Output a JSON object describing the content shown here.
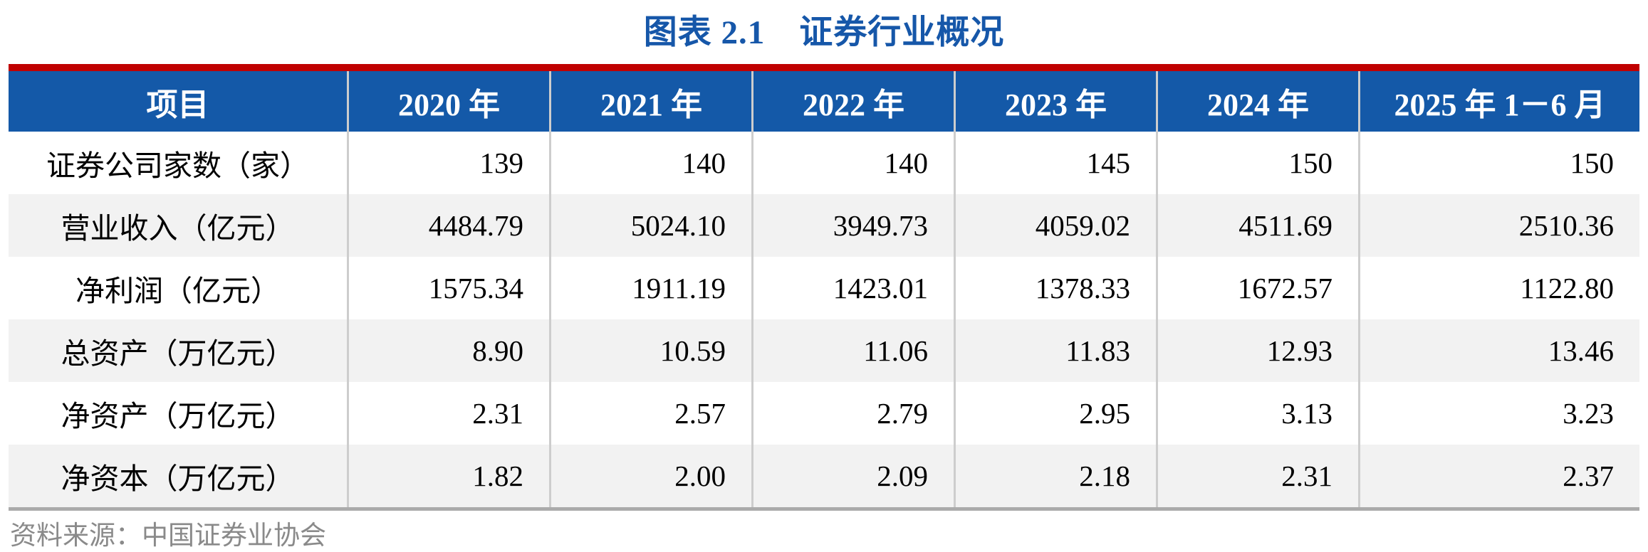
{
  "title": "图表 2.1　证券行业概况",
  "source_note": "资料来源：中国证券业协会",
  "colors": {
    "title_blue": "#1657a9",
    "header_background": "#1459a8",
    "header_text": "#ffffff",
    "accent_red_bar": "#c00000",
    "alt_row_gray": "#f2f2f2",
    "column_separator": "#cdcdcd",
    "table_bottom_border": "#ababab",
    "source_text_gray": "#8a8a8a"
  },
  "table": {
    "header": [
      "项目",
      "2020 年",
      "2021 年",
      "2022 年",
      "2023 年",
      "2024 年",
      "2025 年 1－6 月"
    ],
    "rows": [
      {
        "label": "证券公司家数（家）",
        "values": [
          "139",
          "140",
          "140",
          "145",
          "150",
          "150"
        ]
      },
      {
        "label": "营业收入（亿元）",
        "values": [
          "4484.79",
          "5024.10",
          "3949.73",
          "4059.02",
          "4511.69",
          "2510.36"
        ]
      },
      {
        "label": "净利润（亿元）",
        "values": [
          "1575.34",
          "1911.19",
          "1423.01",
          "1378.33",
          "1672.57",
          "1122.80"
        ]
      },
      {
        "label": "总资产（万亿元）",
        "values": [
          "8.90",
          "10.59",
          "11.06",
          "11.83",
          "12.93",
          "13.46"
        ]
      },
      {
        "label": "净资产（万亿元）",
        "values": [
          "2.31",
          "2.57",
          "2.79",
          "2.95",
          "3.13",
          "3.23"
        ]
      },
      {
        "label": "净资本（万亿元）",
        "values": [
          "1.82",
          "2.00",
          "2.09",
          "2.18",
          "2.31",
          "2.37"
        ]
      }
    ]
  },
  "chart_data": {
    "type": "table",
    "title": "图表 2.1　证券行业概况",
    "categories": [
      "2020 年",
      "2021 年",
      "2022 年",
      "2023 年",
      "2024 年",
      "2025 年 1－6 月"
    ],
    "series": [
      {
        "name": "证券公司家数（家）",
        "values": [
          139,
          140,
          140,
          145,
          150,
          150
        ]
      },
      {
        "name": "营业收入（亿元）",
        "values": [
          4484.79,
          5024.1,
          3949.73,
          4059.02,
          4511.69,
          2510.36
        ]
      },
      {
        "name": "净利润（亿元）",
        "values": [
          1575.34,
          1911.19,
          1423.01,
          1378.33,
          1672.57,
          1122.8
        ]
      },
      {
        "name": "总资产（万亿元）",
        "values": [
          8.9,
          10.59,
          11.06,
          11.83,
          12.93,
          13.46
        ]
      },
      {
        "name": "净资产（万亿元）",
        "values": [
          2.31,
          2.57,
          2.79,
          2.95,
          3.13,
          3.23
        ]
      },
      {
        "name": "净资本（万亿元）",
        "values": [
          1.82,
          2.0,
          2.09,
          2.18,
          2.31,
          2.37
        ]
      }
    ],
    "source": "资料来源：中国证券业协会"
  }
}
